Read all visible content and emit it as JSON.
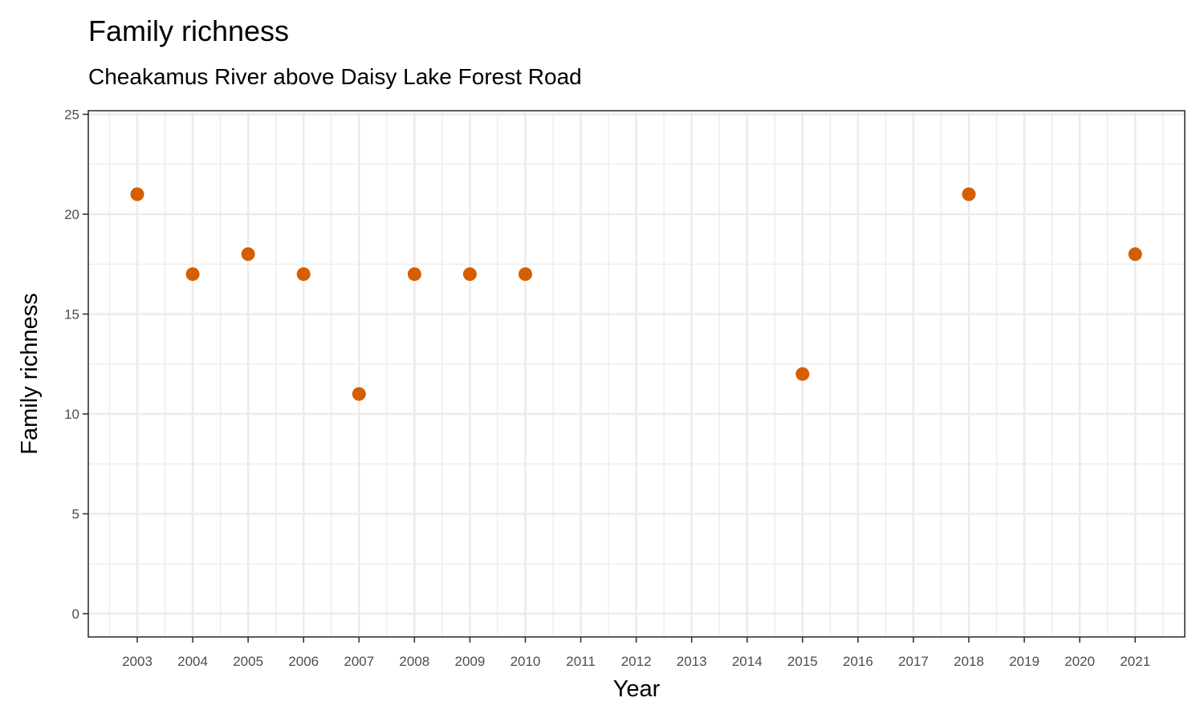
{
  "chart_data": {
    "type": "scatter",
    "title": "Family richness",
    "subtitle": "Cheakamus River above Daisy Lake Forest Road",
    "xlabel": "Year",
    "ylabel": "Family richness",
    "x_ticks": [
      "2003",
      "2004",
      "2005",
      "2006",
      "2007",
      "2008",
      "2009",
      "2010",
      "2011",
      "2012",
      "2013",
      "2014",
      "2015",
      "2016",
      "2017",
      "2018",
      "2019",
      "2020",
      "2021"
    ],
    "y_ticks": [
      "0",
      "5",
      "10",
      "15",
      "20",
      "25"
    ],
    "ylim": [
      0,
      25
    ],
    "xlim": [
      2003,
      2021
    ],
    "grid": true,
    "point_color": "#D55E00",
    "x": [
      2003,
      2004,
      2005,
      2006,
      2007,
      2008,
      2009,
      2010,
      2015,
      2018,
      2021
    ],
    "y": [
      21,
      17,
      18,
      17,
      11,
      17,
      17,
      17,
      12,
      21,
      18
    ]
  }
}
